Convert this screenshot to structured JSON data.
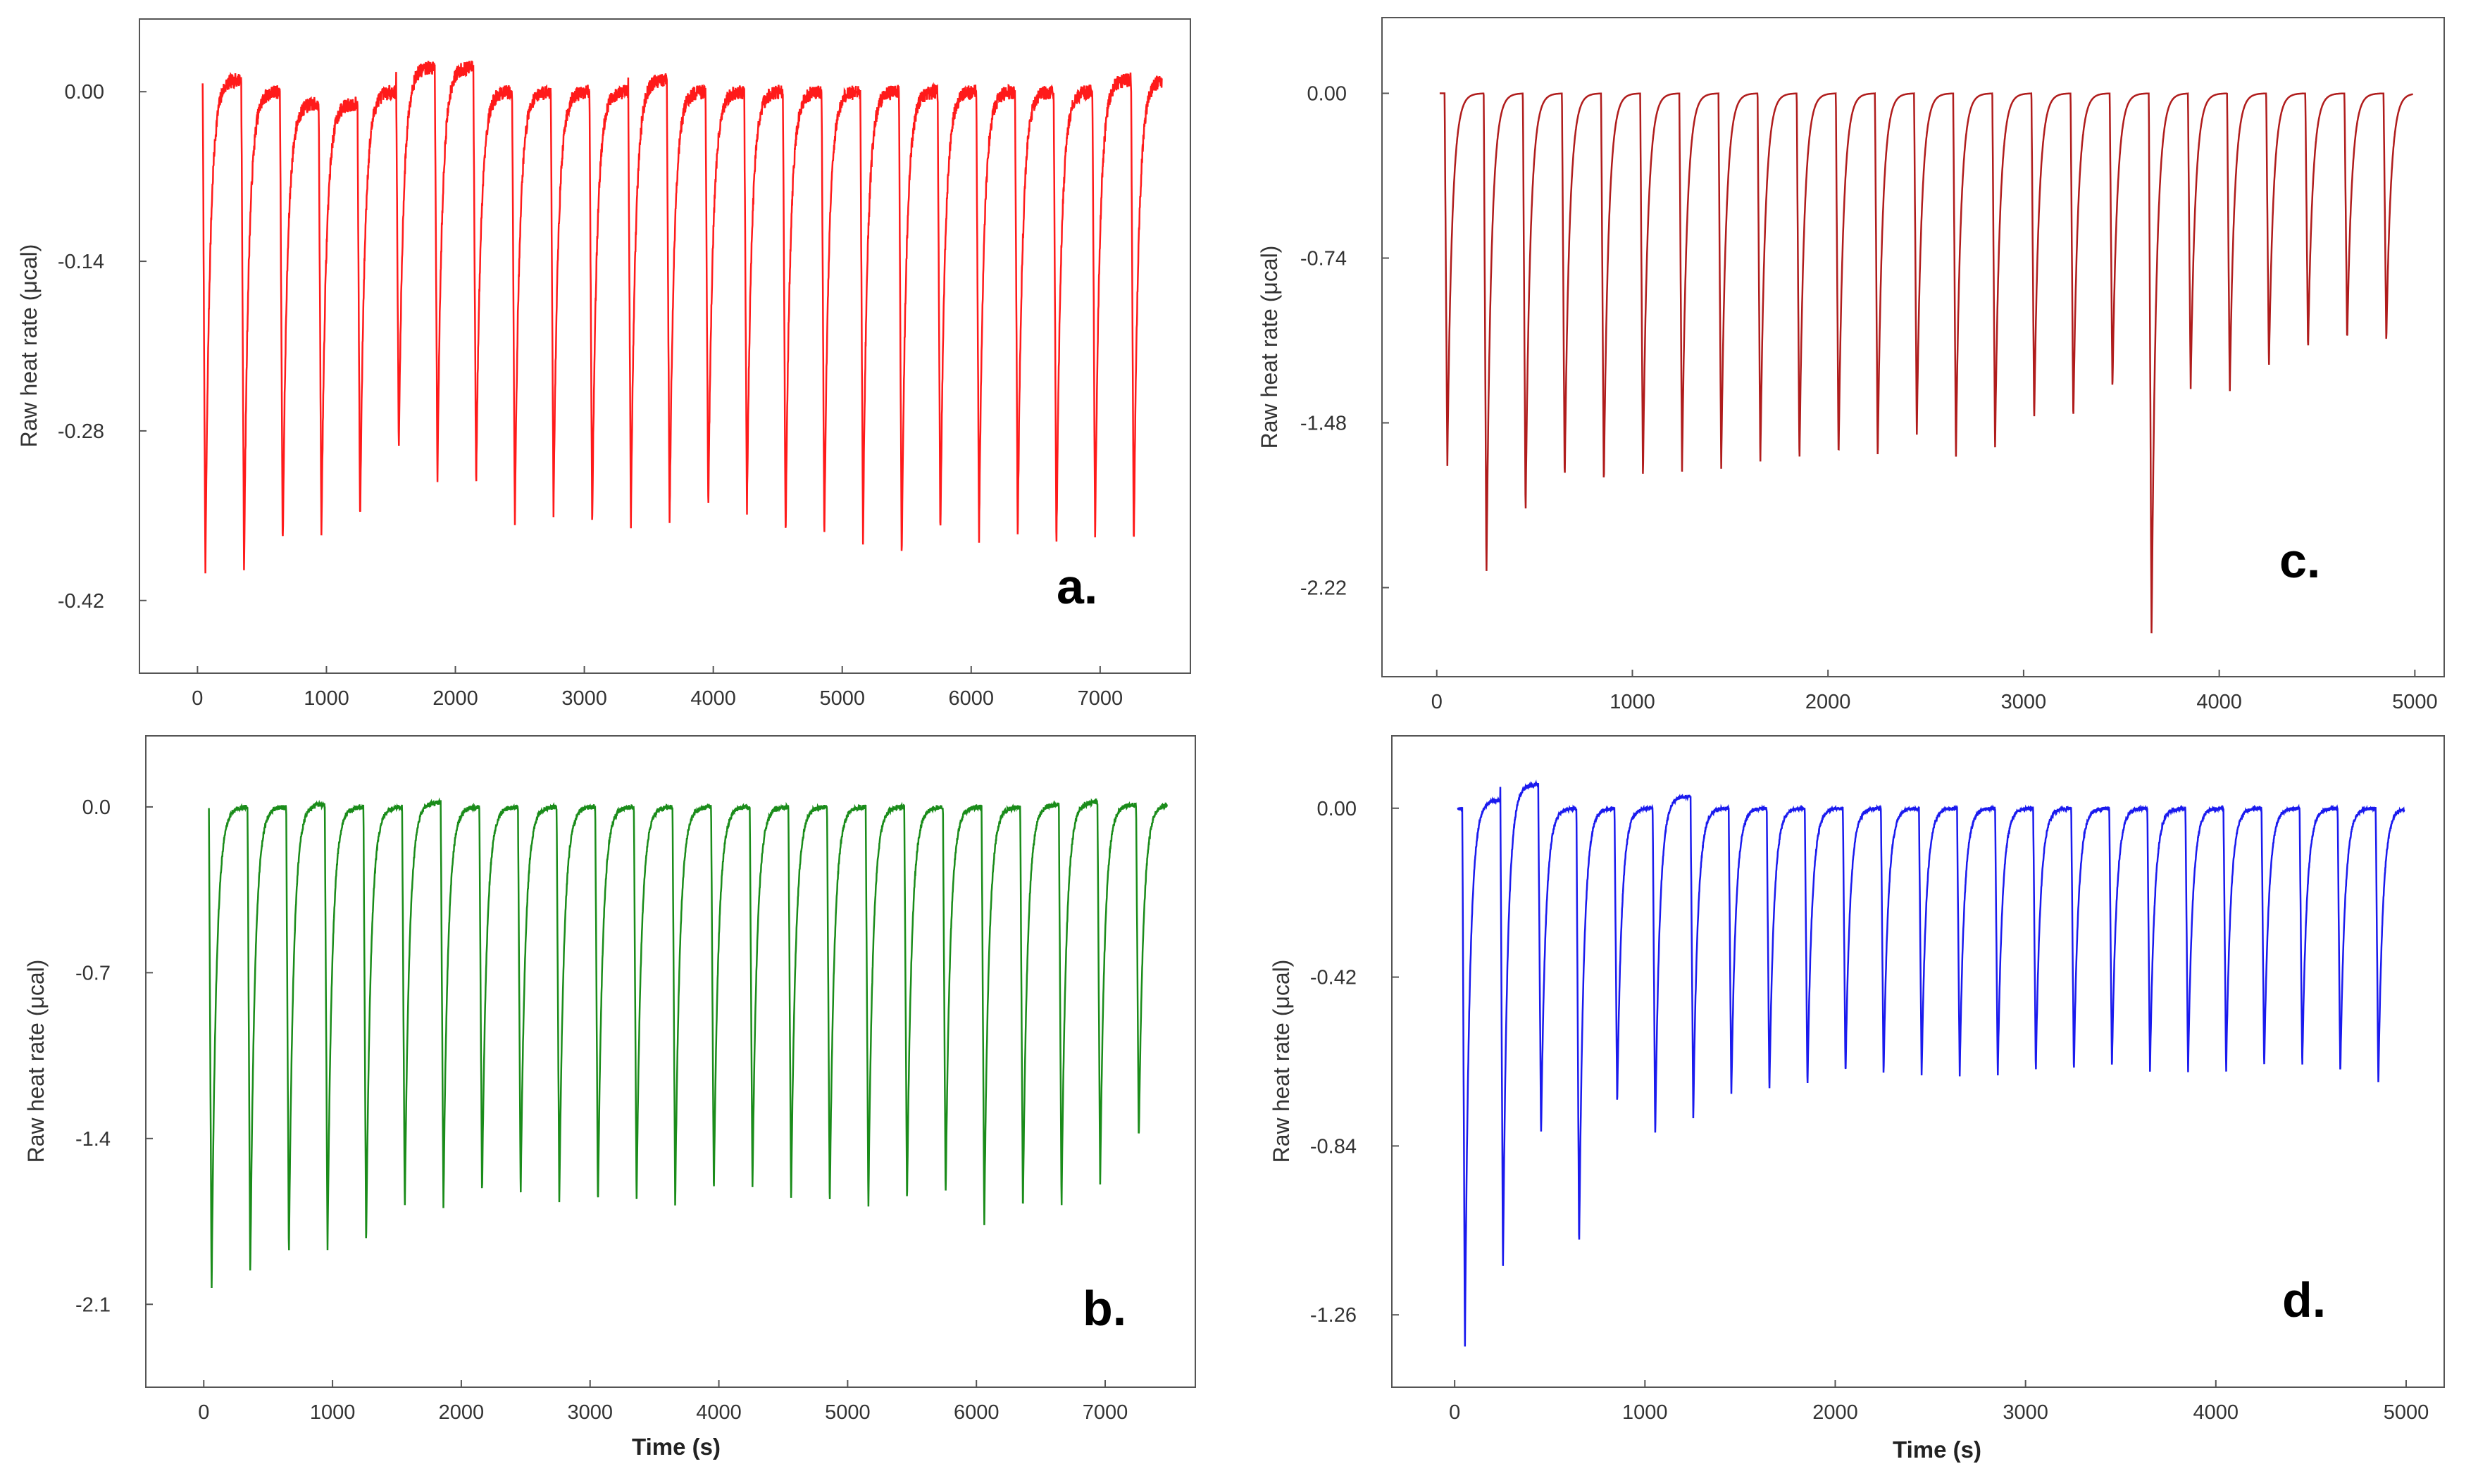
{
  "chart_data": [
    {
      "panel": "a.",
      "type": "line",
      "color": "#ff1a1a",
      "ylabel": "Raw heat rate (μcal)",
      "xlabel": "",
      "xlim": [
        -450,
        7700
      ],
      "ylim": [
        -0.48,
        0.06
      ],
      "xticks": [
        0,
        1000,
        2000,
        3000,
        4000,
        5000,
        6000,
        7000
      ],
      "yticks": [
        0.0,
        -0.14,
        -0.28,
        -0.42
      ],
      "ytick_labels": [
        "0.00",
        "-0.14",
        "-0.28",
        -0.42
      ],
      "x_start": 40,
      "x_end": 7480,
      "injection_times": [
        40,
        340,
        640,
        940,
        1240,
        1540,
        1840,
        2140,
        2440,
        2740,
        3040,
        3340,
        3640,
        3940,
        4240,
        4540,
        4840,
        5140,
        5440,
        5740,
        6040,
        6340,
        6640,
        6940,
        7240
      ],
      "peak_minima": [
        -0.4,
        -0.4,
        -0.38,
        -0.37,
        -0.36,
        -0.3,
        -0.32,
        -0.33,
        -0.36,
        -0.35,
        -0.36,
        -0.36,
        -0.36,
        -0.35,
        -0.35,
        -0.37,
        -0.37,
        -0.37,
        -0.39,
        -0.37,
        -0.37,
        -0.37,
        -0.38,
        -0.37,
        -0.38
      ],
      "baseline_before": [
        0.0,
        0.01,
        0.0,
        -0.01,
        -0.01,
        0.0,
        0.02,
        0.02,
        0.0,
        0.0,
        0.0,
        0.0,
        0.01,
        0.0,
        0.0,
        0.0,
        0.0,
        0.0,
        0.0,
        0.0,
        0.0,
        0.0,
        0.0,
        0.0,
        0.01
      ],
      "noise": 0.006
    },
    {
      "panel": "b.",
      "type": "line",
      "color": "#1a8c1a",
      "ylabel": "Raw heat rate (μcal)",
      "xlabel": "Time (s)",
      "xlim": [
        -450,
        7700
      ],
      "ylim": [
        -2.45,
        0.3
      ],
      "xticks": [
        0,
        1000,
        2000,
        3000,
        4000,
        5000,
        6000,
        7000
      ],
      "yticks": [
        0.0,
        -0.7,
        -1.4,
        -2.1
      ],
      "ytick_labels": [
        "0.0",
        "-0.7",
        "-1.4",
        "-2.1"
      ],
      "x_start": 40,
      "x_end": 7480,
      "injection_times": [
        40,
        340,
        640,
        940,
        1240,
        1540,
        1840,
        2140,
        2440,
        2740,
        3040,
        3340,
        3640,
        3940,
        4240,
        4540,
        4840,
        5140,
        5440,
        5740,
        6040,
        6340,
        6640,
        6940,
        7240
      ],
      "peak_minima": [
        -2.05,
        -2.0,
        -1.92,
        -1.88,
        -1.86,
        -1.72,
        -1.7,
        -1.65,
        -1.66,
        -1.68,
        -1.7,
        -1.68,
        -1.69,
        -1.65,
        -1.62,
        -1.67,
        -1.7,
        -1.7,
        -1.68,
        -1.66,
        -1.77,
        -1.72,
        -1.7,
        -1.6,
        -1.42
      ],
      "baseline_before": [
        0.0,
        0.0,
        0.0,
        0.01,
        0.0,
        0.0,
        0.02,
        0.0,
        0.0,
        0.0,
        0.0,
        0.0,
        0.0,
        0.0,
        0.0,
        0.0,
        0.0,
        0.0,
        0.0,
        0.0,
        0.0,
        0.0,
        0.01,
        0.02,
        0.01
      ],
      "noise": 0.01
    },
    {
      "panel": "c.",
      "type": "line",
      "color": "#b01c1c",
      "ylabel": "Raw heat rate (μcal)",
      "xlabel": "",
      "xlim": [
        -280,
        5150
      ],
      "ylim": [
        -2.62,
        0.34
      ],
      "xticks": [
        0,
        1000,
        2000,
        3000,
        4000,
        5000
      ],
      "yticks": [
        0.0,
        -0.74,
        -1.48,
        -2.22
      ],
      "ytick_labels": [
        "0.00",
        "-0.74",
        "-1.48",
        "-2.22"
      ],
      "x_start": 15,
      "x_end": 4990,
      "injection_times": [
        40,
        240,
        440,
        640,
        840,
        1040,
        1240,
        1440,
        1640,
        1840,
        2040,
        2240,
        2440,
        2640,
        2840,
        3040,
        3240,
        3440,
        3640,
        3840,
        4040,
        4240,
        4440,
        4640,
        4840
      ],
      "peak_minima": [
        -1.68,
        -2.17,
        -1.9,
        -1.75,
        -1.77,
        -1.73,
        -1.7,
        -1.7,
        -1.68,
        -1.67,
        -1.65,
        -1.65,
        -1.54,
        -1.64,
        -1.61,
        -1.48,
        -1.48,
        -1.34,
        -2.45,
        -1.33,
        -1.35,
        -1.24,
        -1.16,
        -1.12,
        -1.12
      ],
      "baseline_before": [
        0.0,
        0.0,
        0.0,
        0.0,
        0.0,
        0.0,
        0.0,
        0.0,
        0.0,
        0.0,
        0.0,
        0.0,
        0.0,
        0.0,
        0.0,
        0.0,
        0.0,
        0.0,
        0.0,
        0.0,
        0.0,
        0.0,
        0.0,
        0.0,
        0.0
      ],
      "noise": 0.0
    },
    {
      "panel": "d.",
      "type": "line",
      "color": "#1a1aee",
      "ylabel": "Raw heat rate (μcal)",
      "xlabel": "Time (s)",
      "xlim": [
        -330,
        5200
      ],
      "ylim": [
        -1.44,
        0.18
      ],
      "xticks": [
        0,
        1000,
        2000,
        3000,
        4000,
        5000
      ],
      "yticks": [
        0.0,
        -0.42,
        -0.84,
        -1.26
      ],
      "ytick_labels": [
        "0.00",
        "-0.42",
        "-0.84",
        "-1.26"
      ],
      "x_start": 15,
      "x_end": 4990,
      "injection_times": [
        40,
        240,
        440,
        640,
        840,
        1040,
        1240,
        1440,
        1640,
        1840,
        2040,
        2240,
        2440,
        2640,
        2840,
        3040,
        3240,
        3440,
        3640,
        3840,
        4040,
        4240,
        4440,
        4640,
        4840
      ],
      "peak_minima": [
        -1.34,
        -1.15,
        -0.82,
        -1.1,
        -0.74,
        -0.82,
        -0.77,
        -0.72,
        -0.71,
        -0.7,
        -0.67,
        -0.67,
        -0.67,
        -0.67,
        -0.67,
        -0.66,
        -0.66,
        -0.65,
        -0.66,
        -0.66,
        -0.66,
        -0.65,
        -0.65,
        -0.67,
        -0.69
      ],
      "baseline_before": [
        0.0,
        0.02,
        0.06,
        0.0,
        0.0,
        0.0,
        0.03,
        0.0,
        0.0,
        0.0,
        0.0,
        0.0,
        0.0,
        0.0,
        0.0,
        0.0,
        0.0,
        0.0,
        0.0,
        0.0,
        0.0,
        0.0,
        0.0,
        0.0,
        0.0
      ],
      "noise": 0.004
    }
  ]
}
